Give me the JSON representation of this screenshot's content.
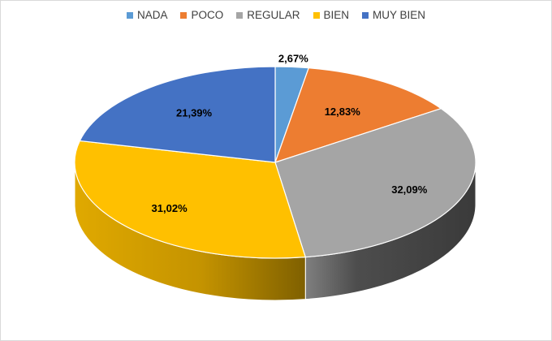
{
  "chart_data": {
    "type": "pie",
    "variant": "3d",
    "legend_position": "top",
    "labels": [
      "NADA",
      "POCO",
      "REGULAR",
      "BIEN",
      "MUY BIEN"
    ],
    "values": [
      2.67,
      12.83,
      32.09,
      31.02,
      21.39
    ],
    "value_labels": [
      "2,67%",
      "12,83%",
      "32,09%",
      "31,02%",
      "21,39%"
    ],
    "colors": [
      "#5b9bd5",
      "#ed7d31",
      "#a5a5a5",
      "#ffc000",
      "#4472c4"
    ]
  }
}
